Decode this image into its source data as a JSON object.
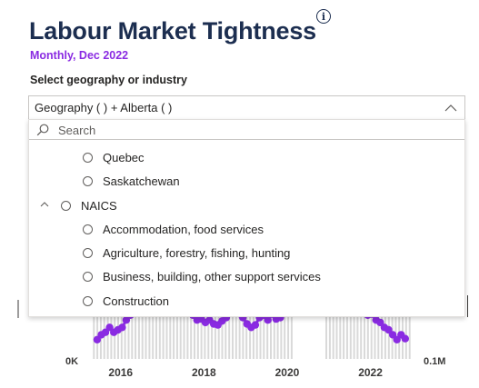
{
  "header": {
    "title": "Labour Market Tightness",
    "info_icon": "info-icon",
    "subtitle": "Monthly, Dec 2022",
    "select_label": "Select geography or industry"
  },
  "dropdown": {
    "selected_value": "Geography ( ) + Alberta ( )",
    "search_placeholder": "Search",
    "items": [
      {
        "label": "Quebec",
        "level": 1
      },
      {
        "label": "Saskatchewan",
        "level": 1
      },
      {
        "label": "NAICS",
        "level": 0,
        "expanded": true
      },
      {
        "label": "Accommodation, food services",
        "level": 1
      },
      {
        "label": "Agriculture, forestry, fishing, hunting",
        "level": 1
      },
      {
        "label": "Business, building, other support services",
        "level": 1
      },
      {
        "label": "Construction",
        "level": 1
      }
    ]
  },
  "chart_data": {
    "type": "line",
    "series_color": "#8a2be2",
    "bar_color": "#d9d9d9",
    "left_axis_label": "0K",
    "right_axis_label": "0.1M",
    "x_ticks": [
      "2016",
      "2018",
      "2020",
      "2022"
    ],
    "x_range": [
      2015.25,
      2023.0
    ],
    "y_range": [
      0,
      1
    ],
    "gap_range": [
      2020.1,
      2020.8
    ],
    "points": [
      [
        2015.4,
        0.3
      ],
      [
        2015.5,
        0.4
      ],
      [
        2015.6,
        0.45
      ],
      [
        2015.7,
        0.55
      ],
      [
        2015.8,
        0.45
      ],
      [
        2015.9,
        0.5
      ],
      [
        2016.0,
        0.55
      ],
      [
        2016.1,
        0.7
      ],
      [
        2016.2,
        0.8
      ],
      [
        2016.3,
        0.88
      ],
      [
        2017.7,
        0.8
      ],
      [
        2017.8,
        0.7
      ],
      [
        2017.9,
        0.72
      ],
      [
        2018.0,
        0.65
      ],
      [
        2018.1,
        0.7
      ],
      [
        2018.2,
        0.62
      ],
      [
        2018.3,
        0.6
      ],
      [
        2018.4,
        0.68
      ],
      [
        2018.5,
        0.75
      ],
      [
        2018.6,
        0.85
      ],
      [
        2018.9,
        0.75
      ],
      [
        2019.0,
        0.62
      ],
      [
        2019.1,
        0.55
      ],
      [
        2019.2,
        0.6
      ],
      [
        2019.3,
        0.75
      ],
      [
        2019.4,
        0.8
      ],
      [
        2019.5,
        0.7
      ],
      [
        2019.6,
        0.82
      ],
      [
        2019.7,
        0.72
      ],
      [
        2019.8,
        0.75
      ],
      [
        2019.9,
        0.85
      ],
      [
        2021.8,
        0.85
      ],
      [
        2021.9,
        0.8
      ],
      [
        2022.0,
        0.82
      ],
      [
        2022.1,
        0.7
      ],
      [
        2022.2,
        0.65
      ],
      [
        2022.3,
        0.55
      ],
      [
        2022.4,
        0.5
      ],
      [
        2022.5,
        0.4
      ],
      [
        2022.6,
        0.3
      ],
      [
        2022.7,
        0.4
      ],
      [
        2022.8,
        0.32
      ]
    ]
  }
}
